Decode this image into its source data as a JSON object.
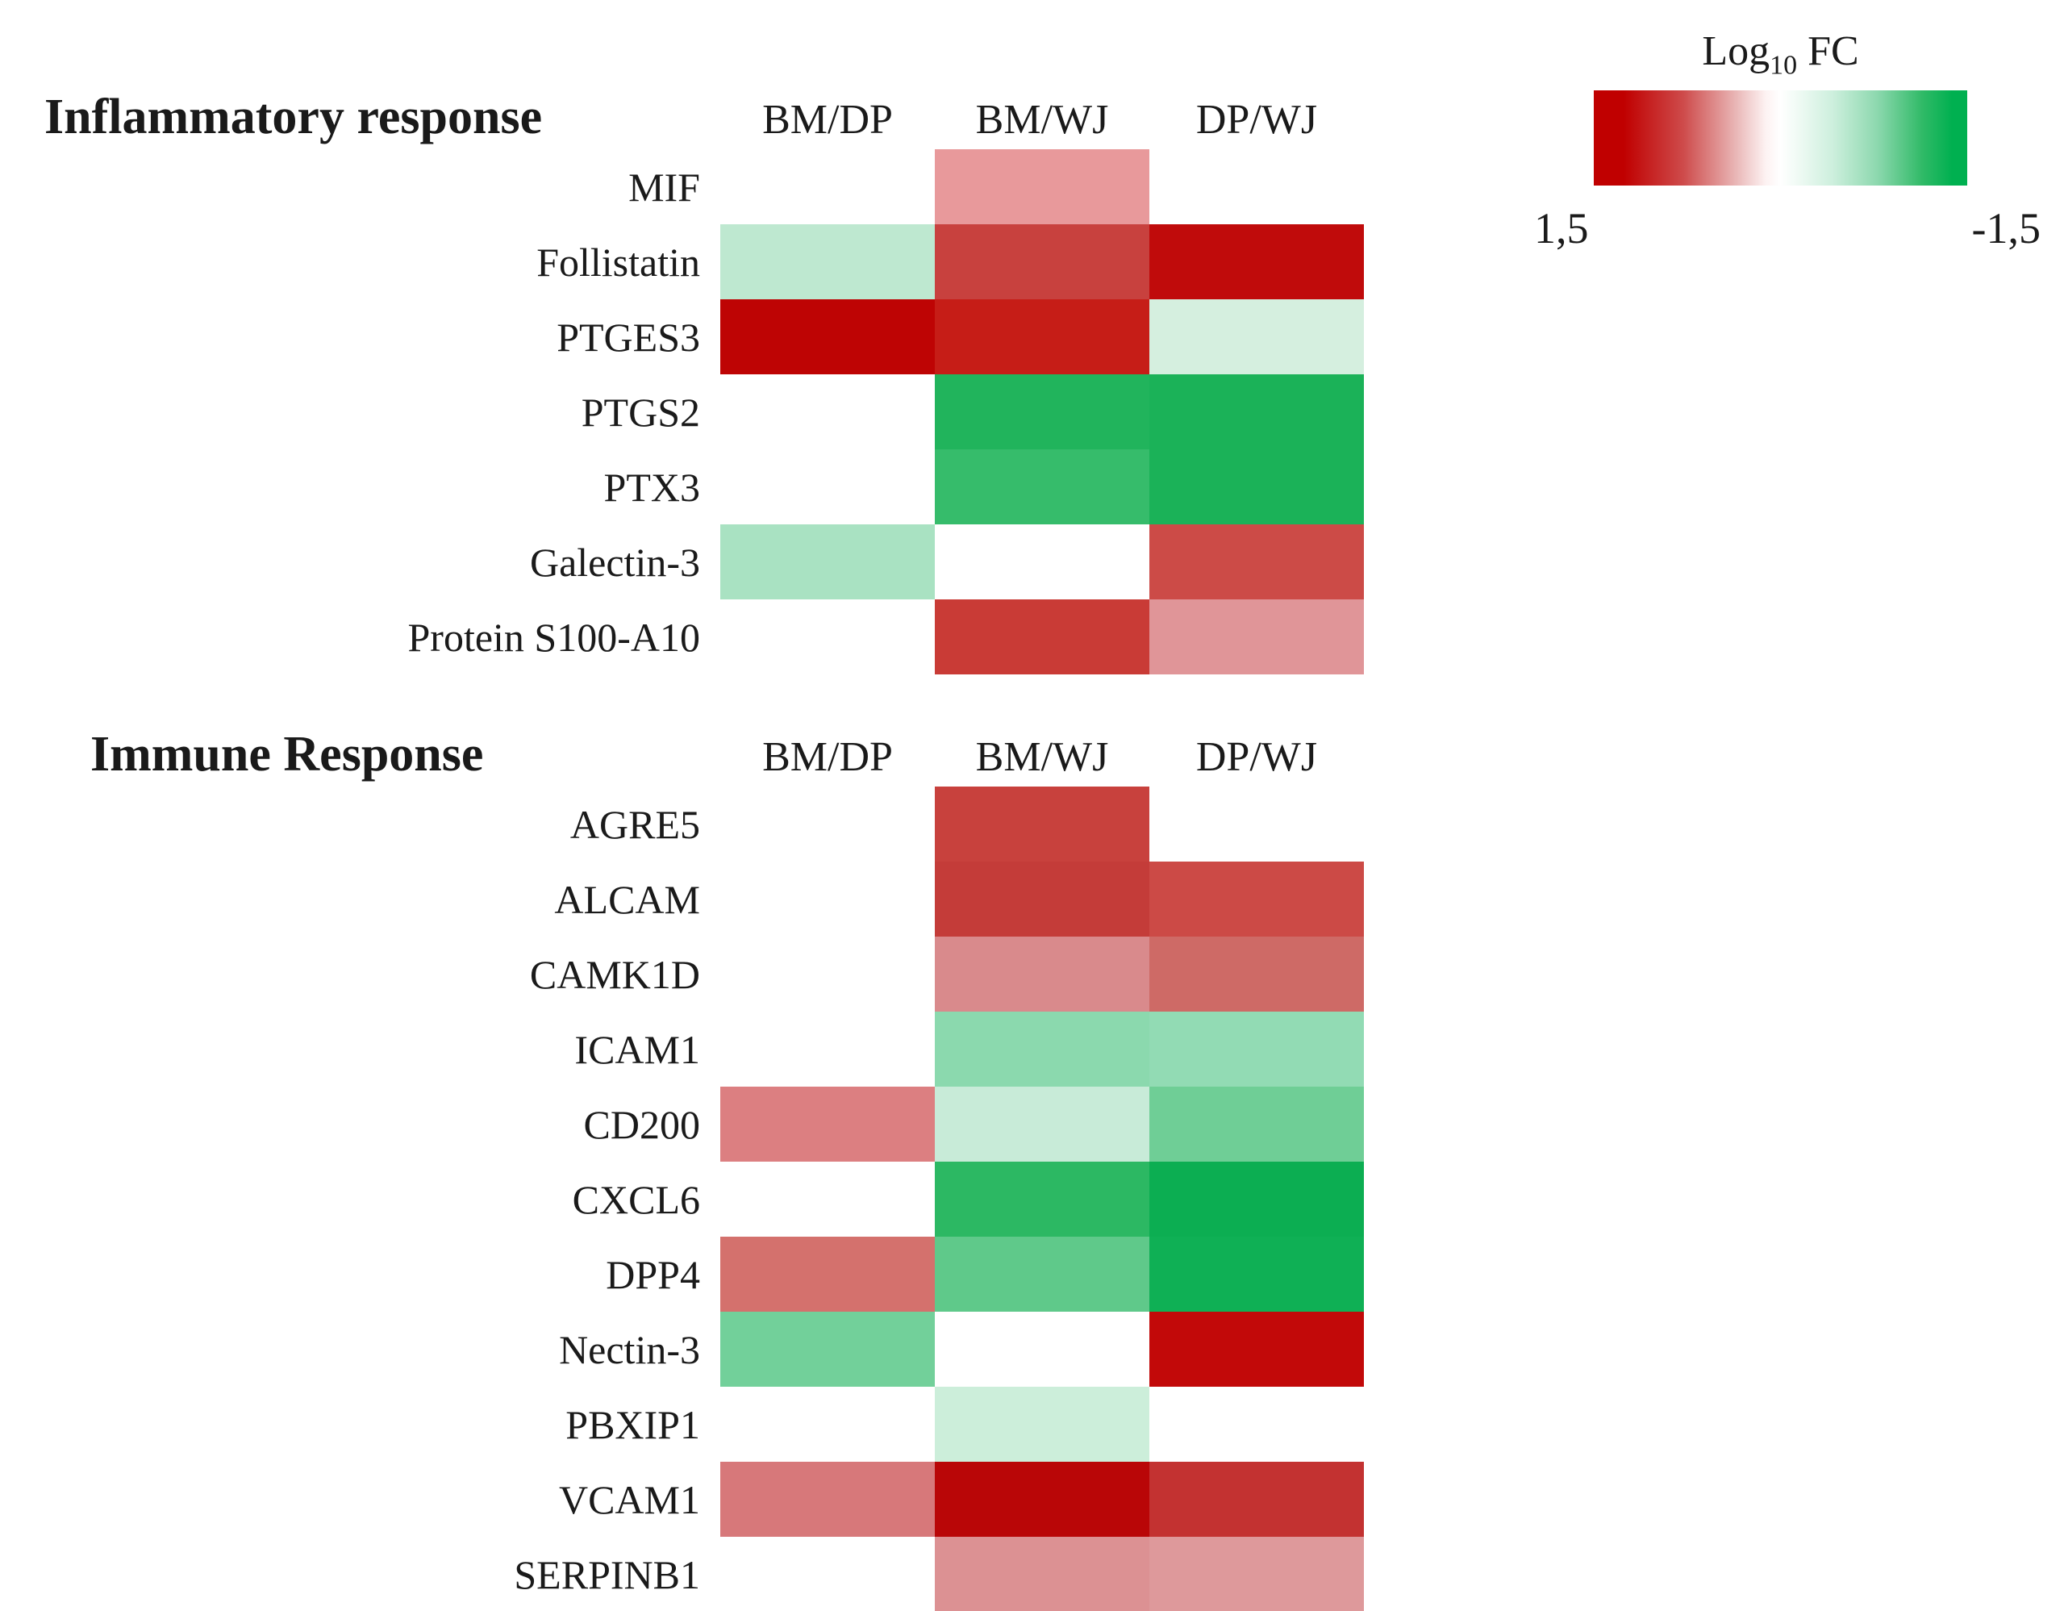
{
  "legend": {
    "title_log": "Log",
    "title_sub": "10",
    "title_fc": "FC",
    "left_label": "1,5",
    "right_label": "-1,5",
    "high_color": "#C00000",
    "low_color": "#00B050",
    "gradient_stops": [
      "#C00000 0%",
      "#C00000 8%",
      "#CE4B4B 24%",
      "#E9B6B6 38%",
      "#FDF2F2 46%",
      "#FFFFFF 50%",
      "#F2FBF6 54%",
      "#CDEFDD 64%",
      "#8CD8AE 76%",
      "#30BA67 88%",
      "#00B050 96%",
      "#00B050 100%"
    ]
  },
  "columns": [
    "BM/DP",
    "BM/WJ",
    "DP/WJ"
  ],
  "sections": [
    {
      "title": "Inflammatory response",
      "rows": [
        {
          "label": "MIF",
          "cell_colors": [
            null,
            "#E8999B",
            null
          ]
        },
        {
          "label": "Follistatin",
          "cell_colors": [
            "#BEE8D0",
            "#C8413E",
            "#C00B0B"
          ]
        },
        {
          "label": "PTGES3",
          "cell_colors": [
            "#BE0404",
            "#C61D17",
            "#D5EFDF"
          ]
        },
        {
          "label": "PTGS2",
          "cell_colors": [
            null,
            "#21B45C",
            "#1BB258"
          ]
        },
        {
          "label": "PTX3",
          "cell_colors": [
            null,
            "#36BC6B",
            "#1BB258"
          ]
        },
        {
          "label": "Galectin-3",
          "cell_colors": [
            "#A9E2C2",
            null,
            "#CC4B47"
          ]
        },
        {
          "label": "Protein S100-A10",
          "cell_colors": [
            null,
            "#C93B36",
            "#E09598"
          ]
        }
      ]
    },
    {
      "title": "Immune Response",
      "rows": [
        {
          "label": "AGRE5",
          "cell_colors": [
            null,
            "#C8413D",
            null
          ]
        },
        {
          "label": "ALCAM",
          "cell_colors": [
            null,
            "#C43C39",
            "#CC4A46"
          ]
        },
        {
          "label": "CAMK1D",
          "cell_colors": [
            null,
            "#D98A8C",
            "#CE6A66"
          ]
        },
        {
          "label": "ICAM1",
          "cell_colors": [
            null,
            "#8BD9AE",
            "#92DBB4"
          ]
        },
        {
          "label": "CD200",
          "cell_colors": [
            "#DC7F81",
            "#C8EBD8",
            "#6FCE96"
          ]
        },
        {
          "label": "CXCL6",
          "cell_colors": [
            null,
            "#2CB863",
            "#0CAE52"
          ]
        },
        {
          "label": "DPP4",
          "cell_colors": [
            "#D4716D",
            "#5FC98A",
            "#0FB055"
          ]
        },
        {
          "label": "Nectin-3",
          "cell_colors": [
            "#72D09A",
            null,
            "#C20909"
          ]
        },
        {
          "label": "PBXIP1",
          "cell_colors": [
            null,
            "#CCEEDA",
            null
          ]
        },
        {
          "label": "VCAM1",
          "cell_colors": [
            "#D7787A",
            "#B90607",
            "#C33231"
          ]
        },
        {
          "label": "SERPINB1",
          "cell_colors": [
            null,
            "#DC9193",
            "#DE999B"
          ]
        }
      ]
    }
  ],
  "chart_data": {
    "type": "heatmap",
    "columns": [
      "BM/DP",
      "BM/WJ",
      "DP/WJ"
    ],
    "colorbar": {
      "title": "Log10 FC",
      "left_tick": "1,5",
      "right_tick": "-1,5",
      "value_range": [
        1.5,
        -1.5
      ],
      "high_color": "#C00000",
      "mid_color": "#FFFFFF",
      "low_color": "#00B050"
    },
    "values_estimated_from_color": true,
    "sections": [
      {
        "title": "Inflammatory response",
        "rows": [
          {
            "gene": "MIF",
            "log10_fc": [
              null,
              0.6,
              null
            ]
          },
          {
            "gene": "Follistatin",
            "log10_fc": [
              -0.4,
              1.1,
              1.45
            ]
          },
          {
            "gene": "PTGES3",
            "log10_fc": [
              1.5,
              1.35,
              -0.25
            ]
          },
          {
            "gene": "PTGS2",
            "log10_fc": [
              null,
              -1.3,
              -1.35
            ]
          },
          {
            "gene": "PTX3",
            "log10_fc": [
              null,
              -1.2,
              -1.35
            ]
          },
          {
            "gene": "Galectin-3",
            "log10_fc": [
              -0.5,
              null,
              1.05
            ]
          },
          {
            "gene": "Protein S100-A10",
            "log10_fc": [
              null,
              1.15,
              0.65
            ]
          }
        ]
      },
      {
        "title": "Immune Response",
        "rows": [
          {
            "gene": "AGRE5",
            "log10_fc": [
              null,
              1.1,
              null
            ]
          },
          {
            "gene": "ALCAM",
            "log10_fc": [
              null,
              1.15,
              1.05
            ]
          },
          {
            "gene": "CAMK1D",
            "log10_fc": [
              null,
              0.7,
              0.9
            ]
          },
          {
            "gene": "ICAM1",
            "log10_fc": [
              null,
              -0.7,
              -0.65
            ]
          },
          {
            "gene": "CD200",
            "log10_fc": [
              0.75,
              -0.3,
              -0.85
            ]
          },
          {
            "gene": "CXCL6",
            "log10_fc": [
              null,
              -1.25,
              -1.45
            ]
          },
          {
            "gene": "DPP4",
            "log10_fc": [
              0.85,
              -0.95,
              -1.4
            ]
          },
          {
            "gene": "Nectin-3",
            "log10_fc": [
              -0.85,
              null,
              1.45
            ]
          },
          {
            "gene": "PBXIP1",
            "log10_fc": [
              null,
              -0.3,
              null
            ]
          },
          {
            "gene": "VCAM1",
            "log10_fc": [
              0.8,
              1.45,
              1.2
            ]
          },
          {
            "gene": "SERPINB1",
            "log10_fc": [
              null,
              0.65,
              0.6
            ]
          }
        ]
      }
    ]
  }
}
